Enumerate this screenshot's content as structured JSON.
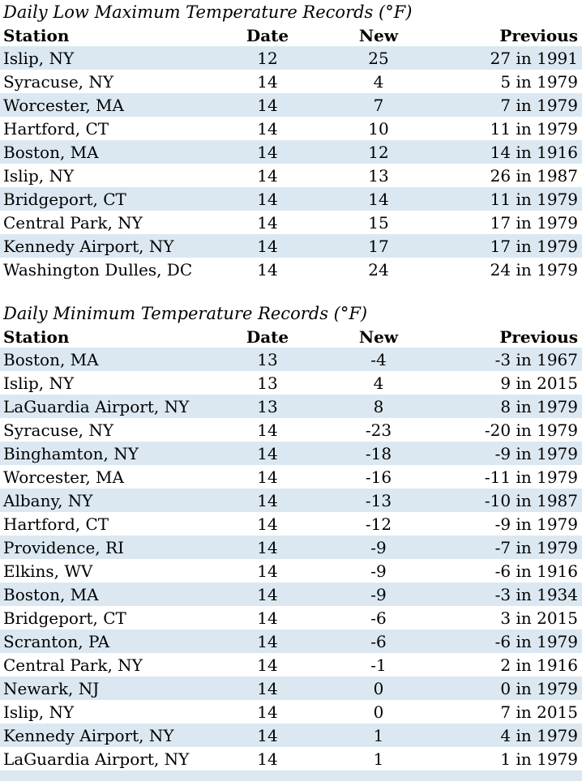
{
  "colors": {
    "stripe": "#dbe8f1",
    "text": "#000000",
    "background": "#ffffff"
  },
  "tables": [
    {
      "title": "Daily Low Maximum Temperature Records (°F)",
      "columns": [
        "Station",
        "Date",
        "New",
        "Previous"
      ],
      "rows": [
        [
          "Islip, NY",
          "12",
          "25",
          "27 in 1991"
        ],
        [
          "Syracuse, NY",
          "14",
          "4",
          "5 in 1979"
        ],
        [
          "Worcester, MA",
          "14",
          "7",
          "7 in 1979"
        ],
        [
          "Hartford, CT",
          "14",
          "10",
          "11 in 1979"
        ],
        [
          "Boston, MA",
          "14",
          "12",
          "14 in 1916"
        ],
        [
          "Islip, NY",
          "14",
          "13",
          "26 in 1987"
        ],
        [
          "Bridgeport, CT",
          "14",
          "14",
          "11 in 1979"
        ],
        [
          "Central Park, NY",
          "14",
          "15",
          "17 in 1979"
        ],
        [
          "Kennedy Airport, NY",
          "14",
          "17",
          "17 in 1979"
        ],
        [
          "Washington Dulles, DC",
          "14",
          "24",
          "24 in 1979"
        ]
      ]
    },
    {
      "title": "Daily Minimum Temperature Records (°F)",
      "columns": [
        "Station",
        "Date",
        "New",
        "Previous"
      ],
      "rows": [
        [
          "Boston, MA",
          "13",
          "-4",
          "-3 in 1967"
        ],
        [
          "Islip, NY",
          "13",
          "4",
          "9 in 2015"
        ],
        [
          "LaGuardia Airport, NY",
          "13",
          "8",
          "8 in 1979"
        ],
        [
          "Syracuse, NY",
          "14",
          "-23",
          "-20 in 1979"
        ],
        [
          "Binghamton, NY",
          "14",
          "-18",
          "-9 in 1979"
        ],
        [
          "Worcester, MA",
          "14",
          "-16",
          "-11 in 1979"
        ],
        [
          "Albany, NY",
          "14",
          "-13",
          "-10 in 1987"
        ],
        [
          "Hartford, CT",
          "14",
          "-12",
          "-9 in 1979"
        ],
        [
          "Providence, RI",
          "14",
          "-9",
          "-7 in 1979"
        ],
        [
          "Elkins, WV",
          "14",
          "-9",
          "-6 in 1916"
        ],
        [
          "Boston, MA",
          "14",
          "-9",
          "-3 in 1934"
        ],
        [
          "Bridgeport, CT",
          "14",
          "-6",
          "3 in 2015"
        ],
        [
          "Scranton, PA",
          "14",
          "-6",
          "-6 in 1979"
        ],
        [
          "Central Park, NY",
          "14",
          "-1",
          "2 in 1916"
        ],
        [
          "Newark, NJ",
          "14",
          "0",
          "0 in 1979"
        ],
        [
          "Islip, NY",
          "14",
          "0",
          "7 in 2015"
        ],
        [
          "Kennedy Airport, NY",
          "14",
          "1",
          "4 in 1979"
        ],
        [
          "LaGuardia Airport, NY",
          "14",
          "1",
          "1 in 1979"
        ]
      ]
    }
  ]
}
